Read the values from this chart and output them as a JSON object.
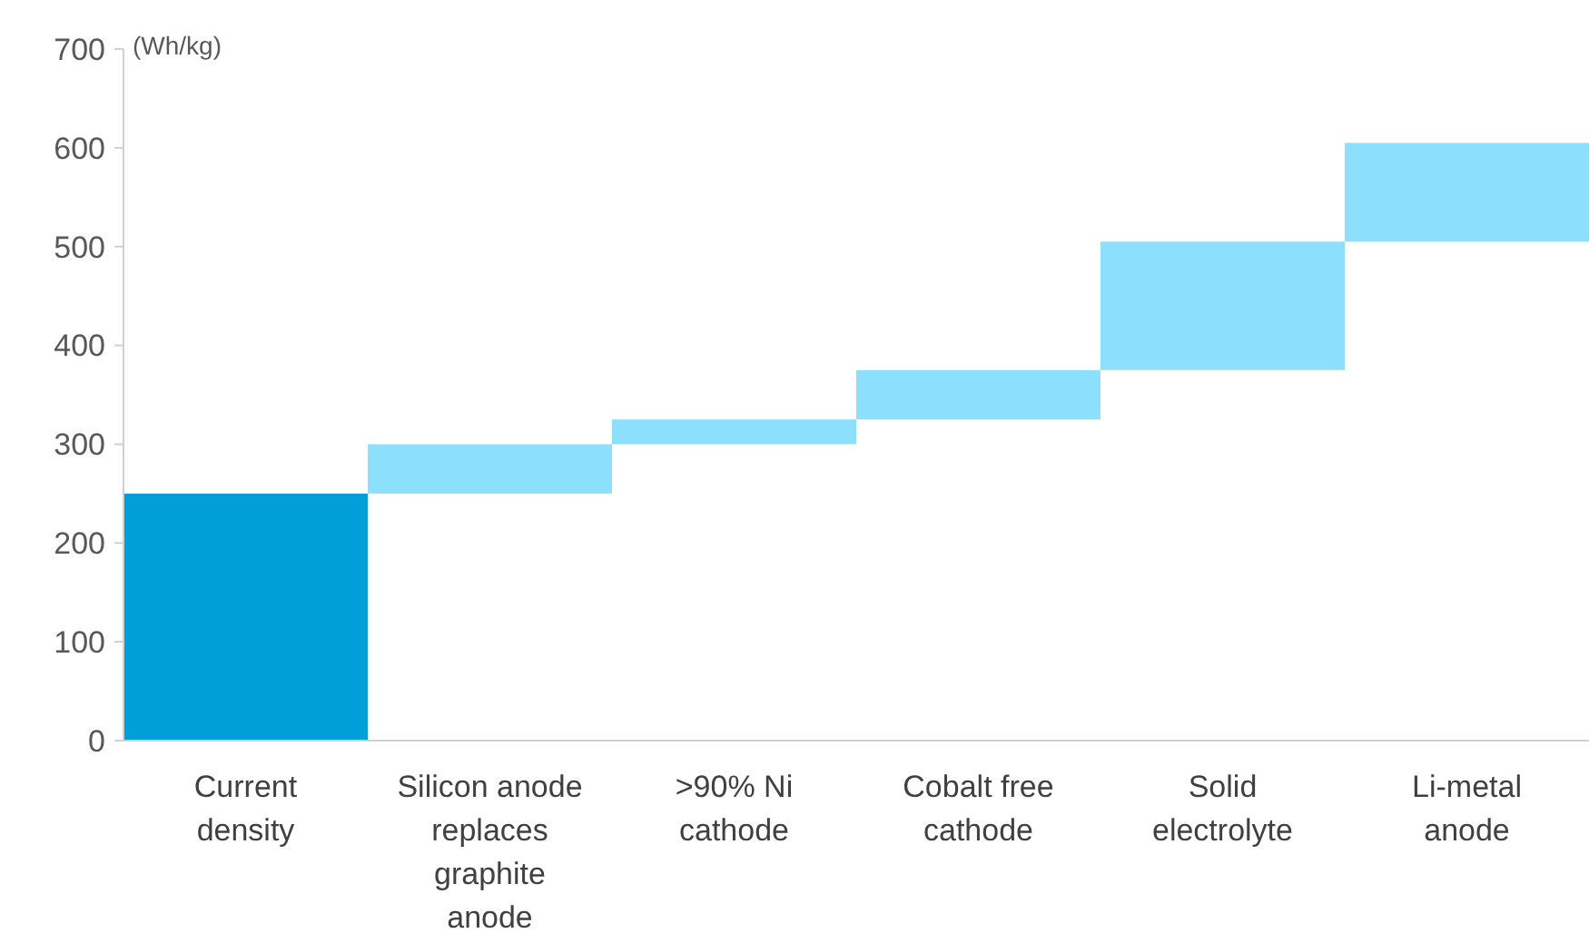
{
  "chart_data": {
    "type": "bar",
    "ylabel": "(Wh/kg)",
    "categories": [
      "Current density",
      "Silicon anode replaces graphite anode",
      ">90% Ni cathode",
      "Cobalt free cathode",
      "Solid electrolyte",
      "Li-metal anode"
    ],
    "values": [
      250,
      50,
      25,
      50,
      130,
      100
    ],
    "base": [
      0,
      250,
      300,
      325,
      375,
      505
    ],
    "colors": [
      "#009fda",
      "#8de0fd",
      "#8de0fd",
      "#8de0fd",
      "#8de0fd",
      "#8de0fd"
    ],
    "ylim": [
      0,
      700
    ],
    "yticks": [
      0,
      100,
      200,
      300,
      400,
      500,
      600,
      700
    ],
    "grid": false
  }
}
